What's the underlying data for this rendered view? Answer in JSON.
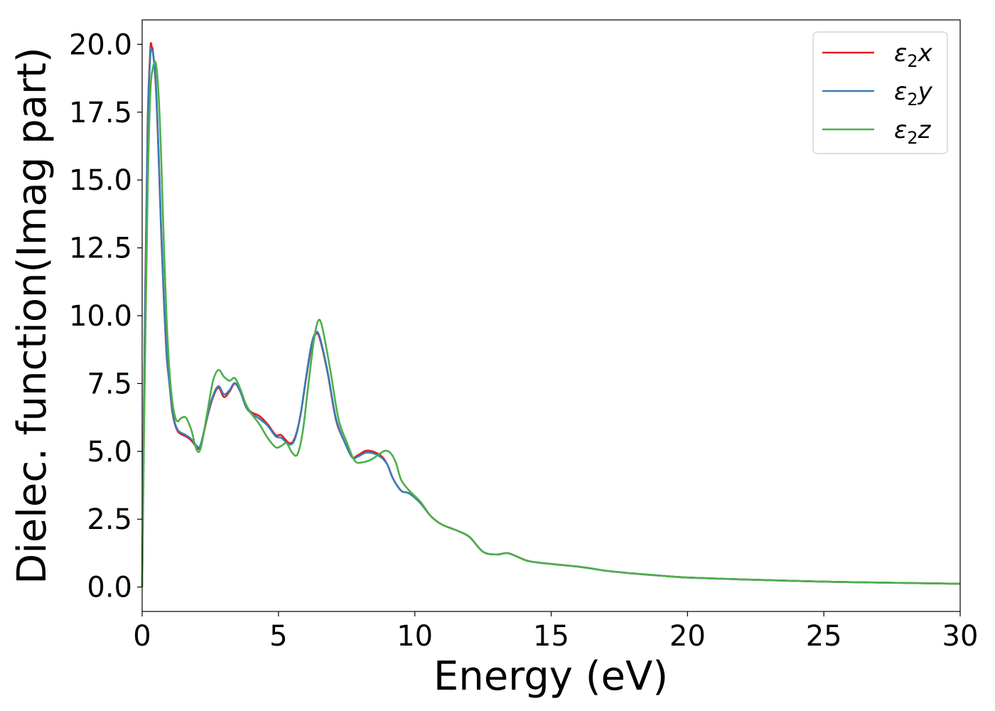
{
  "chart_data": {
    "type": "line",
    "title": "",
    "xlabel": "Energy (eV)",
    "ylabel": "Dielec. function(Imag part)",
    "xlim": [
      0,
      30
    ],
    "ylim": [
      -0.9,
      20.9
    ],
    "x_ticks": [
      0,
      5,
      10,
      15,
      20,
      25,
      30
    ],
    "x_tick_labels": [
      "0",
      "5",
      "10",
      "15",
      "20",
      "25",
      "30"
    ],
    "y_ticks": [
      0,
      2.5,
      5,
      7.5,
      10,
      12.5,
      15,
      17.5,
      20
    ],
    "y_tick_labels": [
      "0.0",
      "2.5",
      "5.0",
      "7.5",
      "10.0",
      "12.5",
      "15.0",
      "17.5",
      "20.0"
    ],
    "grid": false,
    "legend_position": "top-right",
    "series": [
      {
        "name": "ε2x",
        "legend_main": "ε",
        "legend_sub": "2",
        "legend_var": "x",
        "color": "#e41a1c",
        "x": [
          0,
          0.1,
          0.2,
          0.3,
          0.35,
          0.4,
          0.5,
          0.6,
          0.7,
          0.8,
          0.9,
          1.0,
          1.1,
          1.2,
          1.3,
          1.4,
          1.6,
          1.8,
          2.0,
          2.1,
          2.2,
          2.4,
          2.6,
          2.8,
          3.0,
          3.2,
          3.4,
          3.6,
          3.8,
          4.0,
          4.3,
          4.6,
          4.9,
          5.1,
          5.4,
          5.6,
          5.8,
          6.0,
          6.2,
          6.35,
          6.5,
          6.8,
          7.1,
          7.4,
          7.7,
          7.9,
          8.2,
          8.5,
          8.8,
          9.0,
          9.2,
          9.5,
          9.8,
          10.2,
          10.6,
          11.0,
          11.5,
          12.0,
          12.5,
          13.0,
          13.4,
          13.8,
          14.2,
          15.0,
          16.0,
          16.5,
          17.0,
          18.0,
          19.0,
          20.0,
          22.0,
          25.0,
          28.0,
          30.0
        ],
        "y": [
          0,
          10.0,
          17.0,
          19.8,
          19.9,
          19.7,
          18.5,
          16.0,
          13.0,
          10.5,
          8.5,
          7.5,
          6.5,
          6.0,
          5.75,
          5.65,
          5.55,
          5.4,
          5.15,
          5.1,
          5.4,
          6.3,
          7.0,
          7.35,
          7.0,
          7.2,
          7.5,
          7.2,
          6.7,
          6.45,
          6.3,
          6.0,
          5.6,
          5.6,
          5.3,
          5.5,
          6.3,
          7.6,
          8.8,
          9.3,
          9.2,
          7.9,
          6.2,
          5.4,
          4.8,
          4.85,
          5.02,
          4.98,
          4.8,
          4.5,
          4.0,
          3.55,
          3.45,
          3.1,
          2.6,
          2.3,
          2.1,
          1.85,
          1.3,
          1.2,
          1.25,
          1.1,
          0.95,
          0.85,
          0.75,
          0.68,
          0.6,
          0.5,
          0.42,
          0.35,
          0.28,
          0.2,
          0.15,
          0.12
        ]
      },
      {
        "name": "ε2y",
        "legend_main": "ε",
        "legend_sub": "2",
        "legend_var": "y",
        "color": "#377eb8",
        "x": [
          0,
          0.1,
          0.2,
          0.3,
          0.35,
          0.4,
          0.5,
          0.6,
          0.7,
          0.8,
          0.9,
          1.0,
          1.1,
          1.2,
          1.3,
          1.4,
          1.6,
          1.8,
          2.0,
          2.1,
          2.2,
          2.4,
          2.6,
          2.8,
          3.0,
          3.2,
          3.4,
          3.6,
          3.8,
          4.0,
          4.3,
          4.6,
          4.9,
          5.1,
          5.4,
          5.6,
          5.8,
          6.0,
          6.2,
          6.35,
          6.5,
          6.8,
          7.1,
          7.4,
          7.7,
          7.9,
          8.2,
          8.5,
          8.8,
          9.0,
          9.2,
          9.5,
          9.8,
          10.2,
          10.6,
          11.0,
          11.5,
          12.0,
          12.5,
          13.0,
          13.4,
          13.8,
          14.2,
          15.0,
          16.0,
          16.5,
          17.0,
          18.0,
          19.0,
          20.0,
          22.0,
          25.0,
          28.0,
          30.0
        ],
        "y": [
          0,
          9.6,
          16.8,
          19.6,
          19.75,
          19.65,
          18.6,
          16.1,
          13.1,
          10.6,
          8.6,
          7.5,
          6.6,
          6.05,
          5.8,
          5.7,
          5.6,
          5.45,
          5.2,
          5.15,
          5.45,
          6.35,
          7.05,
          7.4,
          7.1,
          7.25,
          7.52,
          7.2,
          6.65,
          6.4,
          6.2,
          5.95,
          5.55,
          5.5,
          5.25,
          5.45,
          6.3,
          7.65,
          8.9,
          9.35,
          9.25,
          7.95,
          6.25,
          5.4,
          4.78,
          4.8,
          4.95,
          4.92,
          4.75,
          4.5,
          4.0,
          3.55,
          3.45,
          3.1,
          2.6,
          2.3,
          2.1,
          1.85,
          1.3,
          1.2,
          1.25,
          1.1,
          0.95,
          0.85,
          0.75,
          0.68,
          0.6,
          0.5,
          0.42,
          0.35,
          0.28,
          0.2,
          0.15,
          0.12
        ]
      },
      {
        "name": "ε2z",
        "legend_main": "ε",
        "legend_sub": "2",
        "legend_var": "z",
        "color": "#4daf4a",
        "x": [
          0,
          0.1,
          0.2,
          0.3,
          0.4,
          0.5,
          0.6,
          0.7,
          0.8,
          0.9,
          1.0,
          1.1,
          1.2,
          1.3,
          1.4,
          1.6,
          1.8,
          1.9,
          2.0,
          2.1,
          2.2,
          2.4,
          2.6,
          2.8,
          3.0,
          3.2,
          3.4,
          3.6,
          3.8,
          4.0,
          4.3,
          4.6,
          4.9,
          5.1,
          5.3,
          5.5,
          5.7,
          5.9,
          6.1,
          6.3,
          6.45,
          6.6,
          6.9,
          7.2,
          7.5,
          7.8,
          8.1,
          8.4,
          8.7,
          8.9,
          9.1,
          9.3,
          9.5,
          9.8,
          10.2,
          10.6,
          11.0,
          11.5,
          12.0,
          12.5,
          13.0,
          13.4,
          13.8,
          14.2,
          15.0,
          16.0,
          16.5,
          17.0,
          18.0,
          19.0,
          20.0,
          22.0,
          25.0,
          28.0,
          30.0
        ],
        "y": [
          0,
          8.0,
          14.5,
          18.2,
          19.15,
          19.3,
          18.2,
          15.8,
          12.5,
          9.8,
          8.0,
          6.9,
          6.3,
          6.1,
          6.2,
          6.25,
          5.8,
          5.4,
          5.05,
          5.0,
          5.35,
          6.5,
          7.6,
          8.0,
          7.75,
          7.6,
          7.7,
          7.3,
          6.75,
          6.4,
          6.0,
          5.5,
          5.15,
          5.2,
          5.3,
          4.95,
          4.9,
          5.8,
          7.5,
          9.1,
          9.8,
          9.6,
          8.0,
          6.2,
          5.35,
          4.65,
          4.6,
          4.7,
          4.9,
          5.02,
          4.95,
          4.6,
          3.95,
          3.55,
          3.15,
          2.6,
          2.3,
          2.1,
          1.85,
          1.3,
          1.2,
          1.25,
          1.1,
          0.95,
          0.85,
          0.75,
          0.68,
          0.6,
          0.5,
          0.42,
          0.35,
          0.28,
          0.2,
          0.15,
          0.12
        ]
      }
    ]
  }
}
